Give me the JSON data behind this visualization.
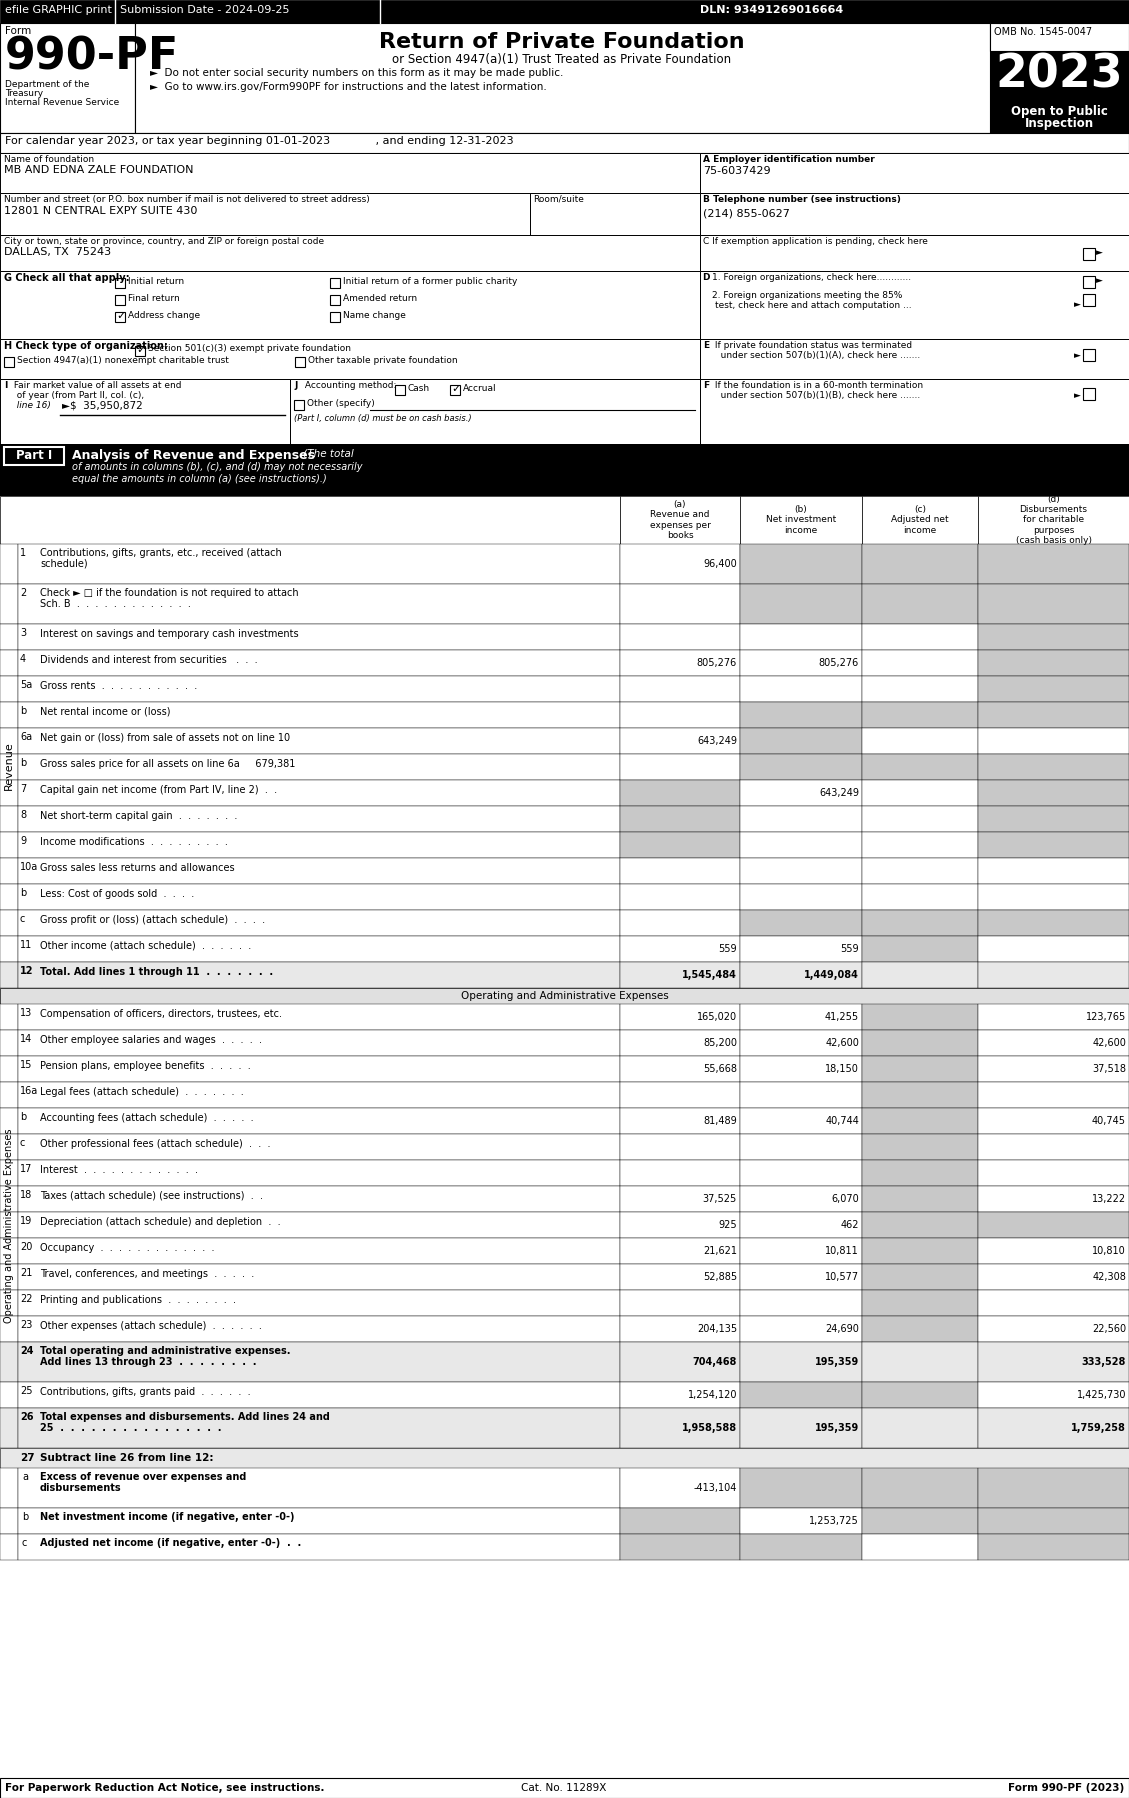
{
  "header_bar": {
    "efile_text": "efile GRAPHIC print",
    "submission_text": "Submission Date - 2024-09-25",
    "dln_text": "DLN: 93491269016664"
  },
  "form_number": "990-PF",
  "form_label": "Form",
  "title": "Return of Private Foundation",
  "subtitle": "or Section 4947(a)(1) Trust Treated as Private Foundation",
  "bullet1": "►  Do not enter social security numbers on this form as it may be made public.",
  "bullet2": "►  Go to www.irs.gov/Form990PF for instructions and the latest information.",
  "year_box": "2023",
  "omb_text": "OMB No. 1545-0047",
  "calendar_line": "For calendar year 2023, or tax year beginning 01-01-2023             , and ending 12-31-2023",
  "name_label": "Name of foundation",
  "name_value": "MB AND EDNA ZALE FOUNDATION",
  "ein_label": "A Employer identification number",
  "ein_value": "75-6037429",
  "address_label": "Number and street (or P.O. box number if mail is not delivered to street address)",
  "address_value": "12801 N CENTRAL EXPY SUITE 430",
  "room_label": "Room/suite",
  "phone_label": "B Telephone number (see instructions)",
  "phone_value": "(214) 855-0627",
  "city_label": "City or town, state or province, country, and ZIP or foreign postal code",
  "city_value": "DALLAS, TX  75243",
  "footer_left": "For Paperwork Reduction Act Notice, see instructions.",
  "footer_right": "Form 990-PF (2023)",
  "footer_cat": "Cat. No. 11289X",
  "shaded_cell_color": "#c8c8c8",
  "revenue_rows": [
    {
      "num": "1",
      "label": "Contributions, gifts, grants, etc., received (attach\nschedule)",
      "a": "96,400",
      "b": "",
      "c": "",
      "d": "",
      "sb": true,
      "sc": true,
      "sd": true,
      "tall": true
    },
    {
      "num": "2",
      "label": "Check ► □ if the foundation is not required to attach\nSch. B  .  .  .  .  .  .  .  .  .  .  .  .  .",
      "a": "",
      "b": "",
      "c": "",
      "d": "",
      "sb": true,
      "sc": true,
      "sd": true,
      "tall": true
    },
    {
      "num": "3",
      "label": "Interest on savings and temporary cash investments",
      "a": "",
      "b": "",
      "c": "",
      "d": "",
      "sd": true
    },
    {
      "num": "4",
      "label": "Dividends and interest from securities   .  .  .",
      "a": "805,276",
      "b": "805,276",
      "c": "",
      "d": "",
      "sd": true
    },
    {
      "num": "5a",
      "label": "Gross rents  .  .  .  .  .  .  .  .  .  .  .",
      "a": "",
      "b": "",
      "c": "",
      "d": "",
      "sd": true
    },
    {
      "num": "b",
      "label": "Net rental income or (loss)",
      "a": "",
      "b": "",
      "c": "",
      "d": "",
      "sb": true,
      "sc": true,
      "sd": true
    },
    {
      "num": "6a",
      "label": "Net gain or (loss) from sale of assets not on line 10",
      "a": "643,249",
      "b": "",
      "c": "",
      "d": "",
      "sb": true
    },
    {
      "num": "b",
      "label": "Gross sales price for all assets on line 6a     679,381",
      "a": "",
      "b": "",
      "c": "",
      "d": "",
      "sb": true,
      "sc": true,
      "sd": true
    },
    {
      "num": "7",
      "label": "Capital gain net income (from Part IV, line 2)  .  .",
      "a": "",
      "b": "643,249",
      "c": "",
      "d": "",
      "sa": true,
      "sd": true
    },
    {
      "num": "8",
      "label": "Net short-term capital gain  .  .  .  .  .  .  .",
      "a": "",
      "b": "",
      "c": "",
      "d": "",
      "sa": true,
      "sd": true
    },
    {
      "num": "9",
      "label": "Income modifications  .  .  .  .  .  .  .  .  .",
      "a": "",
      "b": "",
      "c": "",
      "d": "",
      "sa": true,
      "sd": true
    },
    {
      "num": "10a",
      "label": "Gross sales less returns and allowances",
      "a": "",
      "b": "",
      "c": "",
      "d": ""
    },
    {
      "num": "b",
      "label": "Less: Cost of goods sold  .  .  .  .",
      "a": "",
      "b": "",
      "c": "",
      "d": ""
    },
    {
      "num": "c",
      "label": "Gross profit or (loss) (attach schedule)  .  .  .  .",
      "a": "",
      "b": "",
      "c": "",
      "d": "",
      "sb": true,
      "sc": true,
      "sd": true
    },
    {
      "num": "11",
      "label": "Other income (attach schedule)  .  .  .  .  .  .",
      "a": "559",
      "b": "559",
      "c": "",
      "d": "",
      "sc": true
    },
    {
      "num": "12",
      "label": "Total. Add lines 1 through 11  .  .  .  .  .  .  .",
      "a": "1,545,484",
      "b": "1,449,084",
      "c": "",
      "d": "",
      "total": true
    }
  ],
  "expense_rows": [
    {
      "num": "13",
      "label": "Compensation of officers, directors, trustees, etc.",
      "a": "165,020",
      "b": "41,255",
      "c": "",
      "d": "123,765",
      "sc": true
    },
    {
      "num": "14",
      "label": "Other employee salaries and wages  .  .  .  .  .",
      "a": "85,200",
      "b": "42,600",
      "c": "",
      "d": "42,600",
      "sc": true
    },
    {
      "num": "15",
      "label": "Pension plans, employee benefits  .  .  .  .  .",
      "a": "55,668",
      "b": "18,150",
      "c": "",
      "d": "37,518",
      "sc": true
    },
    {
      "num": "16a",
      "label": "Legal fees (attach schedule)  .  .  .  .  .  .  .",
      "a": "",
      "b": "",
      "c": "",
      "d": "",
      "sc": true
    },
    {
      "num": "b",
      "label": "Accounting fees (attach schedule)  .  .  .  .  .",
      "a": "81,489",
      "b": "40,744",
      "c": "",
      "d": "40,745",
      "sc": true
    },
    {
      "num": "c",
      "label": "Other professional fees (attach schedule)  .  .  .",
      "a": "",
      "b": "",
      "c": "",
      "d": "",
      "sc": true
    },
    {
      "num": "17",
      "label": "Interest  .  .  .  .  .  .  .  .  .  .  .  .  .",
      "a": "",
      "b": "",
      "c": "",
      "d": "",
      "sc": true
    },
    {
      "num": "18",
      "label": "Taxes (attach schedule) (see instructions)  .  .",
      "a": "37,525",
      "b": "6,070",
      "c": "",
      "d": "13,222",
      "sc": true
    },
    {
      "num": "19",
      "label": "Depreciation (attach schedule) and depletion  .  .",
      "a": "925",
      "b": "462",
      "c": "",
      "d": "",
      "sc": true,
      "sd_shade": true
    },
    {
      "num": "20",
      "label": "Occupancy  .  .  .  .  .  .  .  .  .  .  .  .  .",
      "a": "21,621",
      "b": "10,811",
      "c": "",
      "d": "10,810",
      "sc": true
    },
    {
      "num": "21",
      "label": "Travel, conferences, and meetings  .  .  .  .  .",
      "a": "52,885",
      "b": "10,577",
      "c": "",
      "d": "42,308",
      "sc": true
    },
    {
      "num": "22",
      "label": "Printing and publications  .  .  .  .  .  .  .  .",
      "a": "",
      "b": "",
      "c": "",
      "d": "",
      "sc": true
    },
    {
      "num": "23",
      "label": "Other expenses (attach schedule)  .  .  .  .  .  .",
      "a": "204,135",
      "b": "24,690",
      "c": "",
      "d": "22,560",
      "sc": true
    },
    {
      "num": "24",
      "label": "Total operating and administrative expenses.\nAdd lines 13 through 23  .  .  .  .  .  .  .  .",
      "a": "704,468",
      "b": "195,359",
      "c": "",
      "d": "333,528",
      "total": true,
      "tall": true
    },
    {
      "num": "25",
      "label": "Contributions, gifts, grants paid  .  .  .  .  .  .",
      "a": "1,254,120",
      "b": "",
      "c": "",
      "d": "1,425,730",
      "sb": true,
      "sc": true
    },
    {
      "num": "26",
      "label": "Total expenses and disbursements. Add lines 24 and\n25  .  .  .  .  .  .  .  .  .  .  .  .  .  .  .  .",
      "a": "1,958,588",
      "b": "195,359",
      "c": "",
      "d": "1,759,258",
      "total": true,
      "tall": true
    }
  ],
  "subtract_rows": [
    {
      "num": "27",
      "label": "Subtract line 26 from line 12:",
      "header": true
    },
    {
      "num": "a",
      "label": "Excess of revenue over expenses and\ndisbursements",
      "a": "-413,104",
      "b": "",
      "c": "",
      "d": "",
      "sb": true,
      "sc": true,
      "sd": true,
      "tall": true,
      "bold_label": true
    },
    {
      "num": "b",
      "label": "Net investment income (if negative, enter -0-)",
      "a": "",
      "b": "1,253,725",
      "c": "",
      "d": "",
      "sa": true,
      "sc": true,
      "sd": true,
      "bold_label": true
    },
    {
      "num": "c",
      "label": "Adjusted net income (if negative, enter -0-)  .  .",
      "a": "",
      "b": "",
      "c": "",
      "d": "",
      "sa": true,
      "sb": true,
      "sd": true,
      "bold_label": true
    }
  ]
}
